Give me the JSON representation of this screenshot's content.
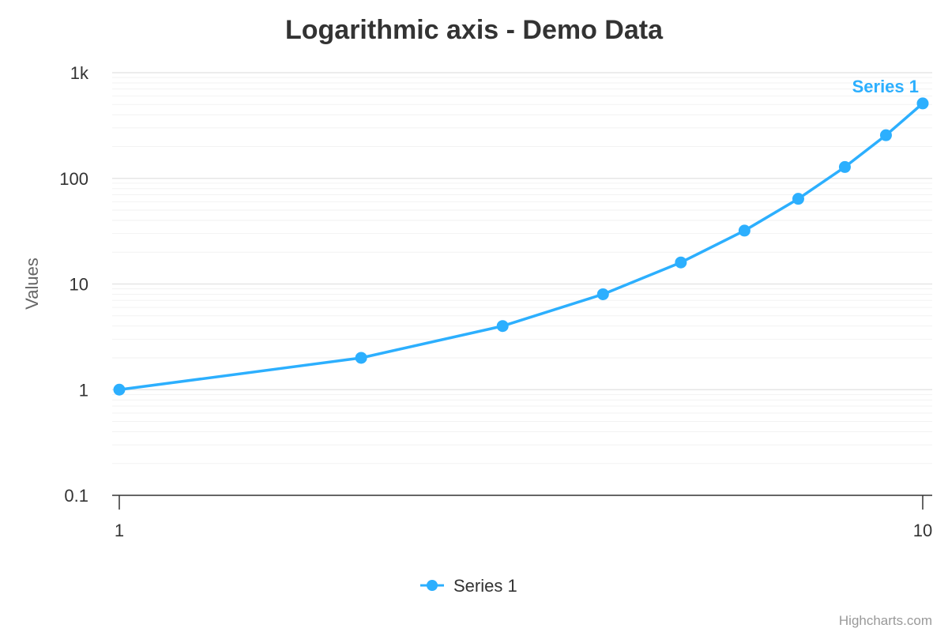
{
  "chart_data": {
    "type": "line",
    "title": "Logarithmic axis - Demo Data",
    "xlabel": "",
    "ylabel": "Values",
    "x_axis": {
      "type": "logarithmic",
      "range": [
        1,
        10
      ],
      "tick_values": [
        1,
        10
      ],
      "tick_labels": [
        "1",
        "10"
      ]
    },
    "y_axis": {
      "type": "logarithmic",
      "range": [
        0.1,
        1000
      ],
      "tick_values": [
        0.1,
        1,
        10,
        100,
        1000
      ],
      "tick_labels": [
        "0.1",
        "1",
        "10",
        "100",
        "1k"
      ]
    },
    "grid": true,
    "legend": {
      "position": "bottom-center",
      "entries": [
        "Series 1"
      ]
    },
    "series": [
      {
        "name": "Series 1",
        "color": "#2caffe",
        "x": [
          1,
          2,
          3,
          4,
          5,
          6,
          7,
          8,
          9,
          10
        ],
        "values": [
          1,
          2,
          4,
          8,
          16,
          32,
          64,
          128,
          256,
          512
        ]
      }
    ],
    "credits": "Highcharts.com"
  }
}
